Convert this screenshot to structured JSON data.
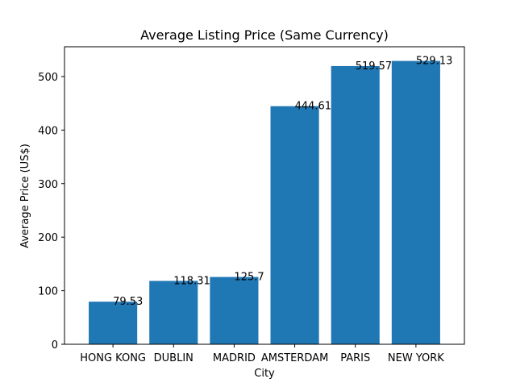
{
  "chart_data": {
    "type": "bar",
    "title": "Average Listing Price (Same Currency)",
    "xlabel": "City",
    "ylabel": "Average Price (US$)",
    "categories": [
      "HONG KONG",
      "DUBLIN",
      "MADRID",
      "AMSTERDAM",
      "PARIS",
      "NEW YORK"
    ],
    "values": [
      79.53,
      118.31,
      125.7,
      444.61,
      519.57,
      529.13
    ],
    "data_labels": [
      "79.53",
      "118.31",
      "125.7",
      "444.61",
      "519.57",
      "529.13"
    ],
    "ylim": [
      0,
      555.6
    ],
    "yticks": [
      0,
      100,
      200,
      300,
      400,
      500
    ],
    "grid": false,
    "legend": "none",
    "colors": {
      "bar": "#1f77b4",
      "axis": "#000000",
      "background": "#ffffff"
    }
  }
}
